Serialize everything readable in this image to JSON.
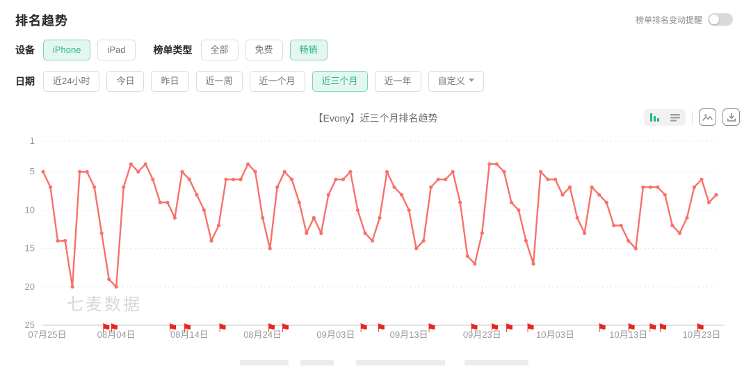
{
  "page": {
    "title": "排名趋势",
    "alert_label": "榜单排名变动提醒",
    "alert_toggle_on": false
  },
  "filters": {
    "rows": [
      {
        "groups": [
          {
            "label": "设备",
            "name": "device",
            "options": [
              {
                "label": "iPhone",
                "name": "iphone",
                "selected": true
              },
              {
                "label": "iPad",
                "name": "ipad",
                "selected": false
              }
            ]
          },
          {
            "label": "榜单类型",
            "name": "chart-type",
            "options": [
              {
                "label": "全部",
                "name": "all",
                "selected": false
              },
              {
                "label": "免费",
                "name": "free",
                "selected": false
              },
              {
                "label": "畅销",
                "name": "grossing",
                "selected": true
              }
            ]
          }
        ]
      },
      {
        "groups": [
          {
            "label": "日期",
            "name": "date-range",
            "options": [
              {
                "label": "近24小时",
                "name": "last-24h",
                "selected": false
              },
              {
                "label": "今日",
                "name": "today",
                "selected": false
              },
              {
                "label": "昨日",
                "name": "yesterday",
                "selected": false
              },
              {
                "label": "近一周",
                "name": "last-week",
                "selected": false
              },
              {
                "label": "近一个月",
                "name": "last-month",
                "selected": false
              },
              {
                "label": "近三个月",
                "name": "last-3-months",
                "selected": true
              },
              {
                "label": "近一年",
                "name": "last-year",
                "selected": false
              },
              {
                "label": "自定义",
                "name": "custom",
                "selected": false,
                "dropdown": true
              }
            ]
          }
        ]
      }
    ]
  },
  "chart_tools": {
    "icons": [
      "bar-chart-view-icon",
      "list-view-icon",
      "export-image-icon",
      "download-icon"
    ],
    "accent_green": "#21b584"
  },
  "chart_data": {
    "type": "line",
    "title": "【Evony】近三个月排名趋势",
    "series_name": "排名",
    "watermark": "七麦数据",
    "line_color": "#f8716b",
    "flag_color": "#e7251c",
    "grid_color": "#e4e4e4",
    "axis_color": "#c4c4c4",
    "tick_text_color": "#999999",
    "y_axis": {
      "ticks": [
        1,
        5,
        10,
        15,
        20,
        25
      ],
      "inverted": true,
      "range": [
        1,
        25
      ]
    },
    "x_tick_labels": [
      "07月25日",
      "08月04日",
      "08月14日",
      "08月24日",
      "09月03日",
      "09月13日",
      "09月23日",
      "10月03日",
      "10月13日",
      "10月23日"
    ],
    "x_tick_interval": 10,
    "values": [
      5,
      7,
      14,
      14,
      20,
      5,
      5,
      7,
      13,
      19,
      20,
      7,
      4,
      5,
      4,
      6,
      9,
      9,
      11,
      5,
      6,
      8,
      10,
      14,
      12,
      6,
      6,
      6,
      4,
      5,
      11,
      15,
      7,
      5,
      6,
      9,
      13,
      11,
      13,
      8,
      6,
      6,
      5,
      10,
      13,
      14,
      11,
      5,
      7,
      8,
      10,
      15,
      14,
      7,
      6,
      6,
      5,
      9,
      16,
      17,
      13,
      4,
      4,
      5,
      9,
      10,
      14,
      17,
      5,
      6,
      6,
      8,
      7,
      11,
      13,
      7,
      8,
      9,
      12,
      12,
      14,
      15,
      7,
      7,
      7,
      8,
      12,
      13,
      11,
      7,
      6,
      9,
      8
    ],
    "flag_positions": [
      8.6,
      9.7,
      17.7,
      19.7,
      24.5,
      31.2,
      33.1,
      43.8,
      46.2,
      53.1,
      58.9,
      61.7,
      63.7,
      66.6,
      76.4,
      80.4,
      83.3,
      84.7,
      89.8
    ]
  }
}
